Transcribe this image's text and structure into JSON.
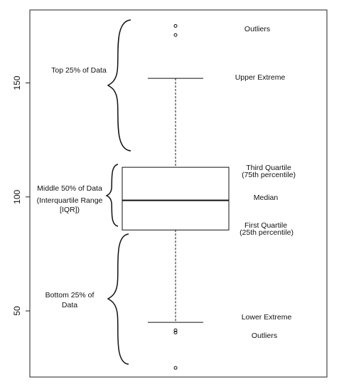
{
  "chart_data": {
    "type": "boxplot",
    "title": "",
    "xlabel": "",
    "ylabel": "",
    "ylim": [
      21,
      182
    ],
    "y_ticks": [
      50,
      100,
      150
    ],
    "grid": false,
    "box": {
      "lower_extreme": 45,
      "first_quartile": 85.5,
      "median": 98.5,
      "third_quartile": 113,
      "upper_extreme": 152,
      "outliers": [
        25,
        40.5,
        41.5,
        171,
        175
      ]
    },
    "annotations": {
      "outliers_top": "Outliers",
      "upper_extreme": "Upper Extreme",
      "third_quartile_1": "Third Quartile",
      "third_quartile_2": "(75th percentile)",
      "median": "Median",
      "first_quartile_1": "First Quartile",
      "first_quartile_2": "(25th percentile)",
      "lower_extreme": "Lower Extreme",
      "outliers_bottom": "Outliers"
    },
    "brackets": {
      "top_1": "Top 25% of Data",
      "middle_1": "Middle 50% of Data",
      "middle_2": "(Interquartile Range",
      "middle_3": "[IQR])",
      "bottom_1": "Bottom 25% of",
      "bottom_2": "Data"
    }
  }
}
